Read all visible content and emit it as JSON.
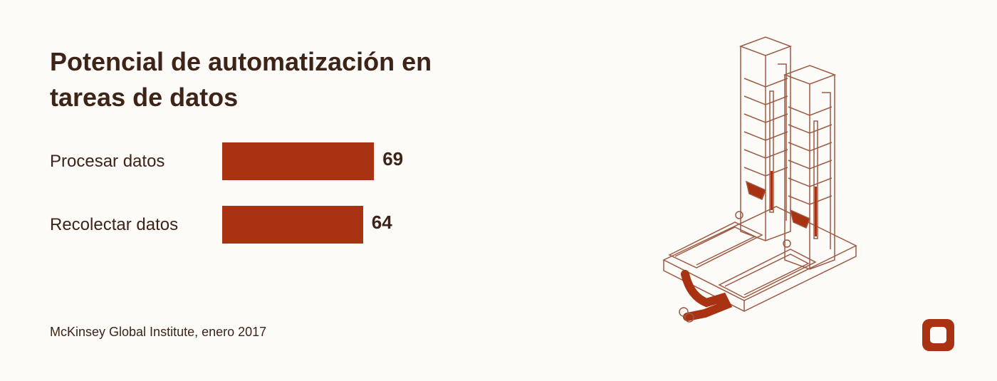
{
  "chart_data": {
    "type": "bar",
    "orientation": "horizontal",
    "title": "Potencial de automatización en tareas de datos",
    "categories": [
      "Procesar datos",
      "Recolectar datos"
    ],
    "values": [
      69,
      64
    ],
    "color": "#a83212",
    "source": "McKinsey Global Institute, enero 2017"
  }
}
